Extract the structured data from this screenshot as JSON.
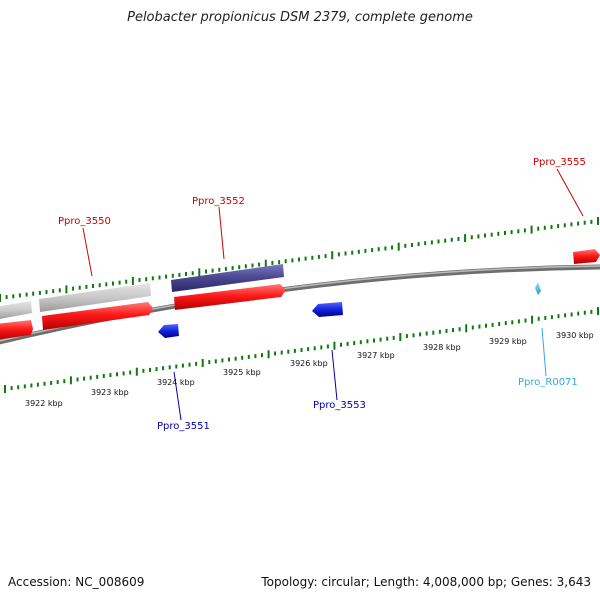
{
  "title": "Pelobacter propionicus DSM 2379, complete genome",
  "footer": {
    "accession": "Accession: NC_008609",
    "summary": "Topology: circular; Length: 4,008,000 bp; Genes: 3,643"
  },
  "colors": {
    "red_gene": "#ee1111",
    "grey_gene": "#bdbdbd",
    "purple_gene": "#4a4590",
    "blue_gene": "#1122dd",
    "cyan_gene": "#33bbee",
    "tick": "#117711",
    "label_red": "#cc0000",
    "label_blue": "#0000aa",
    "label_cyan": "#33aadd",
    "backbone": "#888888"
  },
  "gene_labels": [
    {
      "id": "g3550",
      "text": "Ppro_3550",
      "color": "label_red"
    },
    {
      "id": "g3552",
      "text": "Ppro_3552",
      "color": "label_red"
    },
    {
      "id": "g3555",
      "text": "Ppro_3555",
      "color": "label_red"
    },
    {
      "id": "g3551",
      "text": "Ppro_3551",
      "color": "label_blue"
    },
    {
      "id": "g3553",
      "text": "Ppro_3553",
      "color": "label_blue"
    },
    {
      "id": "r0071",
      "text": "Ppro_R0071",
      "color": "label_cyan"
    }
  ],
  "kbp_labels": [
    "3922 kbp",
    "3923 kbp",
    "3924 kbp",
    "3925 kbp",
    "3926 kbp",
    "3927 kbp",
    "3928 kbp",
    "3929 kbp",
    "3930 kbp"
  ]
}
